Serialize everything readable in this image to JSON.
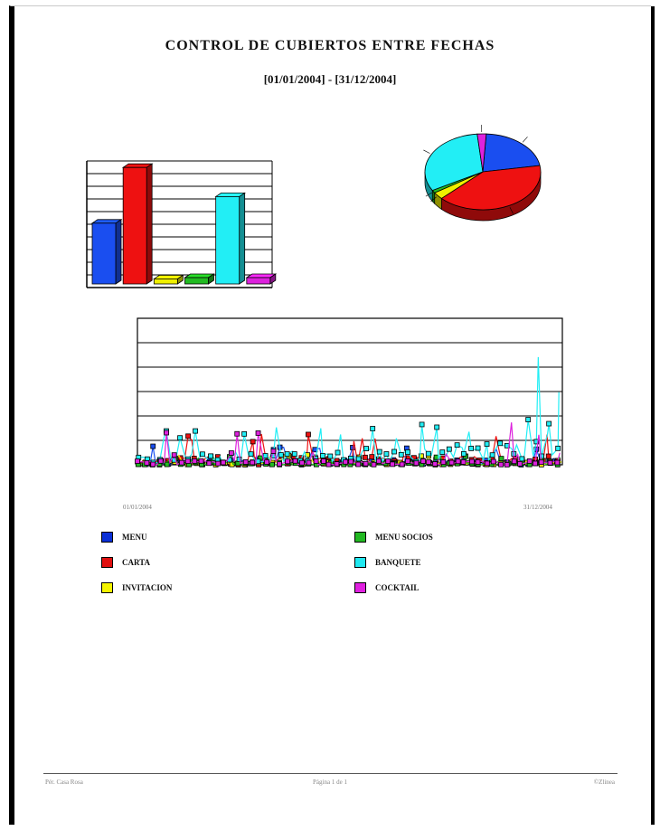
{
  "document": {
    "title": "CONTROL DE CUBIERTOS ENTRE FECHAS",
    "date_range": "[01/01/2004] - [31/12/2004]"
  },
  "footer": {
    "left": "Pér. Casa Rosa",
    "center": "Página 1 de 1",
    "right": "©Zlinea"
  },
  "line_chart_axis": {
    "start_date": "01/01/2004",
    "end_date": "31/12/2004"
  },
  "legend": [
    {
      "label": "MENU",
      "color": "#0a2fd6",
      "icon": "square-swatch"
    },
    {
      "label": "MENU SOCIOS",
      "color": "#22b822",
      "icon": "square-swatch"
    },
    {
      "label": "CARTA",
      "color": "#e01010",
      "icon": "square-swatch"
    },
    {
      "label": "BANQUETE",
      "color": "#20e8f0",
      "icon": "square-swatch"
    },
    {
      "label": "INVITACION",
      "color": "#f5f500",
      "icon": "square-swatch"
    },
    {
      "label": "COCKTAIL",
      "color": "#e020e0",
      "icon": "square-swatch"
    }
  ],
  "chart_data": [
    {
      "type": "bar",
      "categories": [
        "MENU",
        "CARTA",
        "INVITACION",
        "MENU SOCIOS",
        "BANQUETE",
        "COCKTAIL"
      ],
      "colors": [
        "#1a4ef0",
        "#ee1111",
        "#f0f000",
        "#22bb22",
        "#22eef5",
        "#dd22dd"
      ],
      "values": [
        4.8,
        9.2,
        0.4,
        0.5,
        6.9,
        0.5
      ],
      "ylim": [
        0,
        10
      ],
      "grid": true
    },
    {
      "type": "pie",
      "categories": [
        "MENU",
        "CARTA",
        "INVITACION",
        "MENU SOCIOS",
        "BANQUETE",
        "COCKTAIL"
      ],
      "colors": [
        "#1a4ef0",
        "#ee1111",
        "#f0f000",
        "#22bb22",
        "#22eef5",
        "#dd22dd"
      ],
      "values": [
        21.4,
        40.3,
        3.0,
        1.2,
        31.6,
        2.5
      ],
      "three_d": true
    },
    {
      "type": "line",
      "series_colors": [
        "#1a4ef0",
        "#ee1111",
        "#f0f000",
        "#22bb22",
        "#22eef5",
        "#dd22dd"
      ],
      "ylim": [
        0,
        300
      ],
      "grid": true,
      "x_range": [
        "01/01/2004",
        "31/12/2004"
      ],
      "points_per_series": 120
    }
  ]
}
